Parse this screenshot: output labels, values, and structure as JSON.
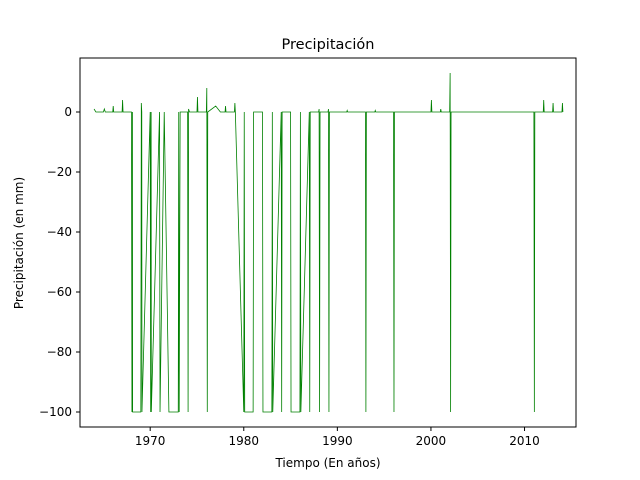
{
  "chart_data": {
    "type": "line",
    "title": "Precipitación",
    "xlabel": "Tiempo (En años)",
    "ylabel": "Precipitación (en mm)",
    "xlim": [
      1962.5,
      2015.5
    ],
    "ylim": [
      -105,
      18
    ],
    "xticks": [
      1970,
      1980,
      1990,
      2000,
      2010
    ],
    "yticks": [
      0,
      -20,
      -40,
      -60,
      -80,
      -100
    ],
    "grid": false,
    "series": [
      {
        "color": "#008000",
        "points": [
          [
            1964,
            1
          ],
          [
            1964.2,
            0
          ],
          [
            1965,
            0
          ],
          [
            1965.1,
            1
          ],
          [
            1965.2,
            0
          ],
          [
            1966,
            0
          ],
          [
            1966.05,
            2
          ],
          [
            1966.1,
            0
          ],
          [
            1967,
            0
          ],
          [
            1967.05,
            4
          ],
          [
            1967.1,
            0
          ],
          [
            1968,
            0
          ],
          [
            1968.05,
            -100
          ],
          [
            1968.1,
            0
          ],
          [
            1968.12,
            -100
          ],
          [
            1969,
            -100
          ],
          [
            1969.05,
            3
          ],
          [
            1969.1,
            0
          ],
          [
            1969.12,
            -100
          ],
          [
            1970,
            0
          ],
          [
            1970.05,
            -100
          ],
          [
            1970.1,
            0
          ],
          [
            1970.12,
            -100
          ],
          [
            1971,
            0
          ],
          [
            1971.05,
            -100
          ],
          [
            1971.5,
            0
          ],
          [
            1972,
            -100
          ],
          [
            1973,
            -100
          ],
          [
            1973.05,
            0
          ],
          [
            1973.1,
            -100
          ],
          [
            1973.2,
            0
          ],
          [
            1974,
            0
          ],
          [
            1974.05,
            -100
          ],
          [
            1974.1,
            1
          ],
          [
            1974.2,
            0
          ],
          [
            1975,
            0
          ],
          [
            1975.05,
            5
          ],
          [
            1975.1,
            0
          ],
          [
            1976,
            0
          ],
          [
            1976.05,
            8
          ],
          [
            1976.1,
            -100
          ],
          [
            1976.15,
            0
          ],
          [
            1977,
            2
          ],
          [
            1977.5,
            0
          ],
          [
            1978,
            0
          ],
          [
            1978.05,
            2
          ],
          [
            1978.1,
            0
          ],
          [
            1979,
            0
          ],
          [
            1979.05,
            3
          ],
          [
            1979.1,
            0
          ],
          [
            1980,
            -100
          ],
          [
            1980.05,
            0
          ],
          [
            1980.1,
            -100
          ],
          [
            1981,
            -100
          ],
          [
            1981.05,
            0
          ],
          [
            1982,
            0
          ],
          [
            1982.05,
            -100
          ],
          [
            1983,
            -100
          ],
          [
            1983.05,
            0
          ],
          [
            1983.1,
            -100
          ],
          [
            1984,
            0
          ],
          [
            1984.05,
            -100
          ],
          [
            1984.1,
            0
          ],
          [
            1985,
            0
          ],
          [
            1985.05,
            -100
          ],
          [
            1986,
            -100
          ],
          [
            1986.05,
            0
          ],
          [
            1986.1,
            -100
          ],
          [
            1987,
            0
          ],
          [
            1987.05,
            -100
          ],
          [
            1987.1,
            0
          ],
          [
            1988,
            0
          ],
          [
            1988.05,
            1
          ],
          [
            1988.1,
            -100
          ],
          [
            1988.15,
            0
          ],
          [
            1989,
            0
          ],
          [
            1989.05,
            1
          ],
          [
            1989.1,
            -100
          ],
          [
            1989.15,
            0
          ],
          [
            1991,
            0
          ],
          [
            1991.05,
            0.5
          ],
          [
            1991.1,
            0
          ],
          [
            1993,
            0
          ],
          [
            1993.05,
            -100
          ],
          [
            1993.1,
            0
          ],
          [
            1994,
            0
          ],
          [
            1994.05,
            0.5
          ],
          [
            1994.1,
            0
          ],
          [
            1996,
            0
          ],
          [
            1996.05,
            -100
          ],
          [
            1996.1,
            0
          ],
          [
            2000,
            0
          ],
          [
            2000.05,
            4
          ],
          [
            2000.1,
            0
          ],
          [
            2001,
            0
          ],
          [
            2001.05,
            1
          ],
          [
            2001.1,
            0
          ],
          [
            2002,
            0
          ],
          [
            2002.05,
            13
          ],
          [
            2002.1,
            -100
          ],
          [
            2002.15,
            0
          ],
          [
            2011,
            0
          ],
          [
            2011.05,
            -100
          ],
          [
            2011.1,
            0
          ],
          [
            2012,
            0
          ],
          [
            2012.05,
            4
          ],
          [
            2012.1,
            0
          ],
          [
            2013,
            0
          ],
          [
            2013.05,
            3
          ],
          [
            2013.1,
            0
          ],
          [
            2014,
            0
          ],
          [
            2014.05,
            3
          ],
          [
            2014.1,
            0
          ]
        ]
      }
    ]
  }
}
